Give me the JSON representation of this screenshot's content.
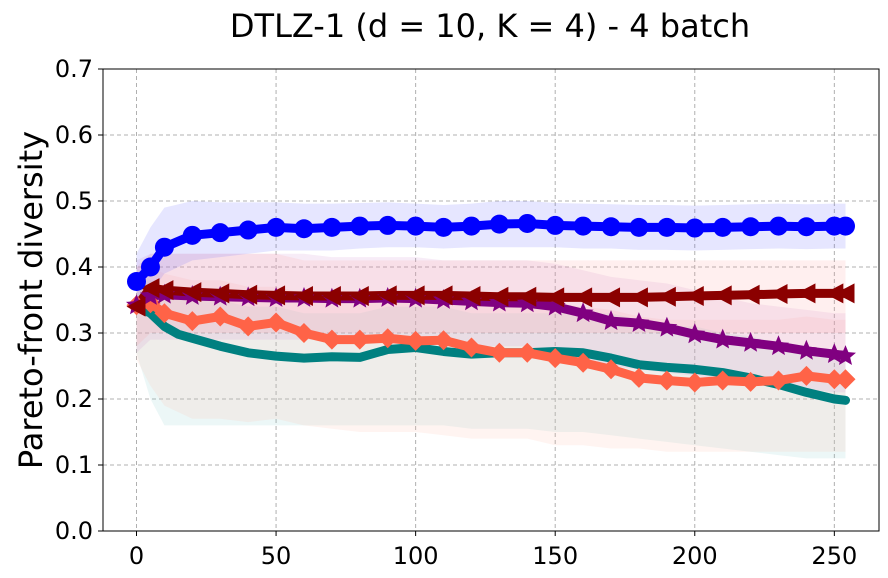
{
  "chart_data": {
    "type": "line",
    "title": "DTLZ-1 (d = 10, K = 4) - 4 batch",
    "xlabel": "",
    "ylabel": "Pareto-front diversity",
    "xlim": [
      -12,
      266
    ],
    "ylim": [
      0,
      0.7
    ],
    "xticks": [
      0,
      50,
      100,
      150,
      200,
      250
    ],
    "xtick_labels": [
      "0",
      "50",
      "100",
      "150",
      "200",
      "250"
    ],
    "yticks": [
      0.0,
      0.1,
      0.2,
      0.3,
      0.4,
      0.5,
      0.6,
      0.7
    ],
    "ytick_labels": [
      "0.0",
      "0.1",
      "0.2",
      "0.3",
      "0.4",
      "0.5",
      "0.6",
      "0.7"
    ],
    "grid": true,
    "series": [
      {
        "name": "blue-circle",
        "color": "#0000ff",
        "band_color": "#6666ff",
        "marker": "circle",
        "x": [
          0,
          5,
          10,
          20,
          30,
          40,
          50,
          60,
          70,
          80,
          90,
          100,
          110,
          120,
          130,
          140,
          150,
          160,
          170,
          180,
          190,
          200,
          210,
          220,
          230,
          240,
          250,
          254
        ],
        "values": [
          0.378,
          0.4,
          0.43,
          0.448,
          0.452,
          0.456,
          0.46,
          0.458,
          0.46,
          0.462,
          0.463,
          0.462,
          0.46,
          0.462,
          0.465,
          0.466,
          0.463,
          0.462,
          0.461,
          0.46,
          0.46,
          0.459,
          0.46,
          0.461,
          0.462,
          0.461,
          0.462,
          0.462
        ],
        "lower": [
          0.34,
          0.36,
          0.39,
          0.41,
          0.415,
          0.42,
          0.425,
          0.425,
          0.425,
          0.428,
          0.43,
          0.43,
          0.428,
          0.43,
          0.43,
          0.43,
          0.43,
          0.428,
          0.428,
          0.426,
          0.426,
          0.425,
          0.426,
          0.427,
          0.428,
          0.427,
          0.428,
          0.428
        ],
        "upper": [
          0.42,
          0.46,
          0.49,
          0.5,
          0.498,
          0.498,
          0.498,
          0.496,
          0.496,
          0.497,
          0.498,
          0.496,
          0.494,
          0.496,
          0.5,
          0.5,
          0.497,
          0.496,
          0.495,
          0.494,
          0.494,
          0.493,
          0.494,
          0.495,
          0.496,
          0.495,
          0.496,
          0.496
        ]
      },
      {
        "name": "darkred-triangle",
        "color": "#8b0000",
        "band_color": "#ff9999",
        "marker": "triangle-left",
        "x": [
          0,
          5,
          10,
          20,
          30,
          40,
          50,
          60,
          70,
          80,
          90,
          100,
          110,
          120,
          130,
          140,
          150,
          160,
          170,
          180,
          190,
          200,
          210,
          220,
          230,
          240,
          250,
          254
        ],
        "values": [
          0.34,
          0.368,
          0.365,
          0.362,
          0.36,
          0.358,
          0.357,
          0.356,
          0.356,
          0.356,
          0.357,
          0.357,
          0.357,
          0.356,
          0.355,
          0.355,
          0.354,
          0.354,
          0.354,
          0.354,
          0.355,
          0.356,
          0.357,
          0.358,
          0.359,
          0.36,
          0.36,
          0.36
        ],
        "lower": [
          0.28,
          0.3,
          0.3,
          0.3,
          0.3,
          0.3,
          0.3,
          0.3,
          0.3,
          0.3,
          0.3,
          0.3,
          0.3,
          0.3,
          0.3,
          0.3,
          0.3,
          0.3,
          0.3,
          0.3,
          0.3,
          0.3,
          0.3,
          0.3,
          0.3,
          0.3,
          0.3,
          0.3
        ],
        "upper": [
          0.4,
          0.42,
          0.42,
          0.42,
          0.42,
          0.42,
          0.42,
          0.41,
          0.41,
          0.41,
          0.41,
          0.41,
          0.41,
          0.41,
          0.41,
          0.41,
          0.41,
          0.41,
          0.41,
          0.41,
          0.41,
          0.41,
          0.41,
          0.41,
          0.41,
          0.41,
          0.41,
          0.41
        ]
      },
      {
        "name": "purple-star",
        "color": "#800080",
        "band_color": "#cc88cc",
        "marker": "star",
        "x": [
          0,
          5,
          10,
          20,
          30,
          40,
          50,
          60,
          70,
          80,
          90,
          100,
          110,
          120,
          130,
          140,
          150,
          160,
          170,
          180,
          190,
          200,
          210,
          220,
          230,
          240,
          250,
          254
        ],
        "values": [
          0.342,
          0.356,
          0.358,
          0.356,
          0.355,
          0.354,
          0.353,
          0.353,
          0.352,
          0.352,
          0.353,
          0.352,
          0.35,
          0.348,
          0.346,
          0.345,
          0.34,
          0.33,
          0.318,
          0.315,
          0.308,
          0.298,
          0.29,
          0.285,
          0.28,
          0.273,
          0.268,
          0.265
        ],
        "lower": [
          0.27,
          0.29,
          0.29,
          0.29,
          0.29,
          0.29,
          0.29,
          0.29,
          0.29,
          0.29,
          0.29,
          0.29,
          0.285,
          0.28,
          0.28,
          0.28,
          0.27,
          0.26,
          0.25,
          0.245,
          0.24,
          0.235,
          0.23,
          0.225,
          0.22,
          0.215,
          0.21,
          0.21
        ],
        "upper": [
          0.41,
          0.42,
          0.42,
          0.42,
          0.42,
          0.42,
          0.42,
          0.42,
          0.415,
          0.415,
          0.415,
          0.415,
          0.41,
          0.41,
          0.41,
          0.41,
          0.405,
          0.395,
          0.385,
          0.38,
          0.375,
          0.365,
          0.355,
          0.345,
          0.34,
          0.335,
          0.33,
          0.33
        ]
      },
      {
        "name": "tomato-diamond",
        "color": "#ff6347",
        "band_color": "#ffb8a8",
        "marker": "diamond",
        "x": [
          0,
          5,
          10,
          20,
          30,
          40,
          50,
          60,
          70,
          80,
          90,
          100,
          110,
          120,
          130,
          140,
          150,
          160,
          170,
          180,
          190,
          200,
          210,
          220,
          230,
          240,
          250,
          254
        ],
        "values": [
          0.342,
          0.345,
          0.33,
          0.318,
          0.325,
          0.31,
          0.316,
          0.3,
          0.29,
          0.29,
          0.292,
          0.288,
          0.289,
          0.278,
          0.27,
          0.27,
          0.262,
          0.255,
          0.245,
          0.232,
          0.228,
          0.225,
          0.228,
          0.226,
          0.228,
          0.235,
          0.23,
          0.23
        ],
        "lower": [
          0.26,
          0.22,
          0.19,
          0.17,
          0.17,
          0.165,
          0.17,
          0.16,
          0.155,
          0.15,
          0.15,
          0.15,
          0.145,
          0.14,
          0.14,
          0.14,
          0.13,
          0.13,
          0.125,
          0.125,
          0.12,
          0.12,
          0.12,
          0.12,
          0.12,
          0.12,
          0.12,
          0.12
        ],
        "upper": [
          0.4,
          0.4,
          0.39,
          0.38,
          0.38,
          0.37,
          0.37,
          0.36,
          0.36,
          0.36,
          0.36,
          0.36,
          0.36,
          0.35,
          0.35,
          0.35,
          0.345,
          0.34,
          0.335,
          0.325,
          0.32,
          0.32,
          0.32,
          0.32,
          0.32,
          0.325,
          0.32,
          0.32
        ]
      },
      {
        "name": "teal-square",
        "color": "#008080",
        "band_color": "#88d0d0",
        "marker": "none",
        "x": [
          0,
          5,
          10,
          15,
          20,
          30,
          40,
          50,
          60,
          70,
          80,
          90,
          100,
          110,
          120,
          130,
          140,
          150,
          160,
          170,
          180,
          190,
          200,
          210,
          220,
          230,
          240,
          250,
          254
        ],
        "values": [
          0.34,
          0.33,
          0.31,
          0.298,
          0.292,
          0.28,
          0.27,
          0.265,
          0.262,
          0.264,
          0.263,
          0.275,
          0.278,
          0.272,
          0.268,
          0.27,
          0.27,
          0.272,
          0.27,
          0.262,
          0.252,
          0.248,
          0.245,
          0.24,
          0.232,
          0.222,
          0.21,
          0.2,
          0.198
        ],
        "lower": [
          0.27,
          0.2,
          0.16,
          0.16,
          0.16,
          0.16,
          0.16,
          0.16,
          0.16,
          0.16,
          0.16,
          0.16,
          0.16,
          0.16,
          0.155,
          0.155,
          0.155,
          0.15,
          0.15,
          0.145,
          0.14,
          0.135,
          0.13,
          0.125,
          0.12,
          0.115,
          0.11,
          0.11,
          0.11
        ],
        "upper": [
          0.4,
          0.38,
          0.37,
          0.36,
          0.36,
          0.35,
          0.34,
          0.34,
          0.33,
          0.33,
          0.33,
          0.34,
          0.34,
          0.34,
          0.33,
          0.33,
          0.33,
          0.33,
          0.33,
          0.33,
          0.32,
          0.31,
          0.31,
          0.3,
          0.295,
          0.285,
          0.27,
          0.26,
          0.26
        ]
      }
    ]
  }
}
